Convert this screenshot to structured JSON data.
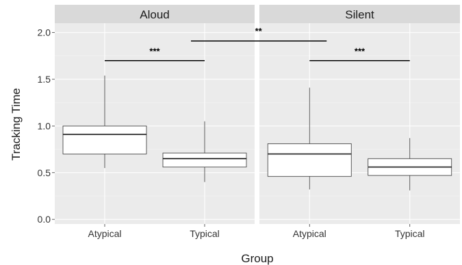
{
  "chart_data": {
    "type": "boxplot",
    "xlabel": "Group",
    "ylabel": "Tracking Time",
    "ylim": [
      -0.05,
      2.1
    ],
    "yticks": [
      0.0,
      0.5,
      1.0,
      1.5,
      2.0
    ],
    "ytick_labels": [
      "0.0",
      "0.5",
      "1.0",
      "1.5",
      "2.0"
    ],
    "grid": true,
    "panels": [
      {
        "title": "Aloud",
        "categories": [
          "Atypical",
          "Typical"
        ],
        "boxes": [
          {
            "category": "Atypical",
            "min": 0.55,
            "q1": 0.7,
            "median": 0.91,
            "q3": 1.0,
            "max": 1.54
          },
          {
            "category": "Typical",
            "min": 0.4,
            "q1": 0.56,
            "median": 0.65,
            "q3": 0.71,
            "max": 1.05
          }
        ],
        "significance": [
          {
            "from": "Atypical",
            "to": "Typical",
            "y": 1.7,
            "label": "***"
          }
        ]
      },
      {
        "title": "Silent",
        "categories": [
          "Atypical",
          "Typical"
        ],
        "boxes": [
          {
            "category": "Atypical",
            "min": 0.32,
            "q1": 0.46,
            "median": 0.7,
            "q3": 0.81,
            "max": 1.41
          },
          {
            "category": "Typical",
            "min": 0.31,
            "q1": 0.47,
            "median": 0.56,
            "q3": 0.65,
            "max": 0.87
          }
        ],
        "significance": [
          {
            "from": "Atypical",
            "to": "Typical",
            "y": 1.7,
            "label": "***"
          }
        ]
      }
    ],
    "cross_panel_significance": [
      {
        "label": "**",
        "y": 1.91
      }
    ]
  }
}
